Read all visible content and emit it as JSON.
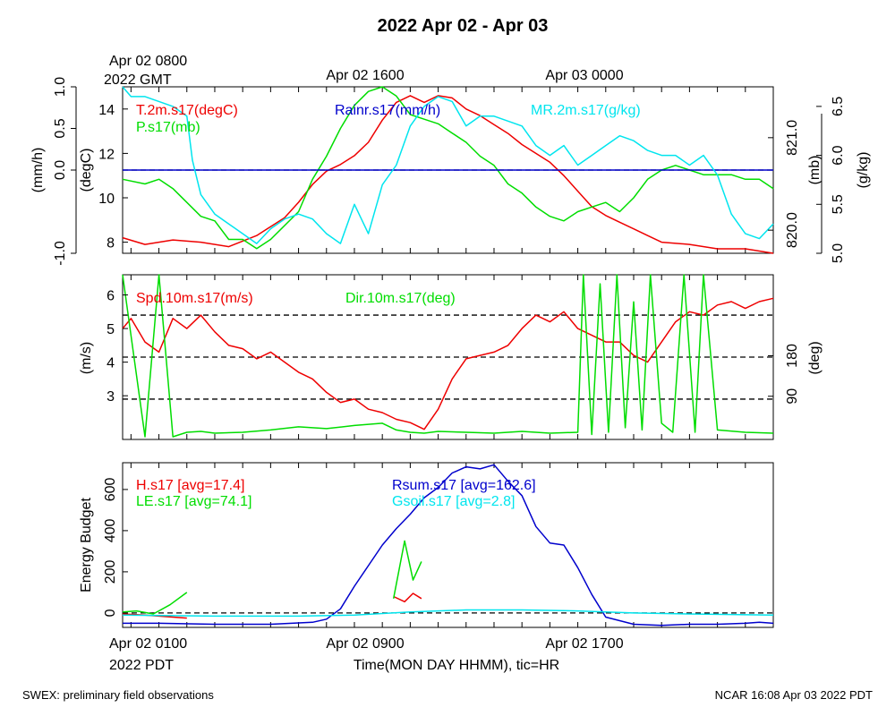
{
  "title": "2022 Apr 02 - Apr 03",
  "footer": {
    "left": "SWEX: preliminary field observations",
    "right": "NCAR 16:08 Apr 03 2022 PDT"
  },
  "top_time_labels": {
    "gmt_line1": "Apr 02 0800",
    "gmt_line2": "2022 GMT",
    "mid": "Apr 02 1600",
    "right": "Apr 03 0000"
  },
  "bottom_time_labels": {
    "left_line1": "Apr 02 0100",
    "left_line2": "2022 PDT",
    "mid": "Apr 02 0900",
    "right": "Apr 02 1700",
    "xlabel": "Time(MON DAY HHMM), tic=HR"
  },
  "colors": {
    "red": "#ee0000",
    "green": "#00dd00",
    "blue": "#0000cc",
    "cyan": "#00e5ee",
    "black": "#000000"
  },
  "chart_data": [
    {
      "type": "line",
      "panel": "met",
      "x_unit": "hours since Apr 02 0000 PDT",
      "xlim": [
        0.7,
        24.0
      ],
      "axes": {
        "rain": {
          "label": "(mm/h)",
          "ticks": [
            "-1.0",
            "0.0",
            "0.5",
            "1.0"
          ],
          "range": [
            -1.0,
            1.0
          ]
        },
        "temp": {
          "label": "(degC)",
          "ticks": [
            "8",
            "10",
            "12",
            "14"
          ],
          "range": [
            7.5,
            15.0
          ]
        },
        "pres": {
          "label": "(mb)",
          "ticks": [
            "820.0",
            "821.0"
          ],
          "range": [
            819.75,
            821.55
          ]
        },
        "mr": {
          "label": "(g/kg)",
          "ticks": [
            "5.0",
            "5.5",
            "6.0",
            "6.5"
          ],
          "range": [
            5.0,
            6.7
          ]
        }
      },
      "series": [
        {
          "name": "T.2m.s17(degC)",
          "axis": "temp",
          "color": "#ee0000",
          "x": [
            0.7,
            1.5,
            2.5,
            3.5,
            4.5,
            5.5,
            6.0,
            6.5,
            7.0,
            7.5,
            8.0,
            8.5,
            9.0,
            9.5,
            10.0,
            10.5,
            11.0,
            11.5,
            12.0,
            12.5,
            13.0,
            13.5,
            14.0,
            14.5,
            15.0,
            15.5,
            16.0,
            16.5,
            17.0,
            17.5,
            18.0,
            18.5,
            19.0,
            19.5,
            20.0,
            21.0,
            22.0,
            23.0,
            24.0
          ],
          "y": [
            8.2,
            7.9,
            8.1,
            8.0,
            7.8,
            8.3,
            8.7,
            9.1,
            9.8,
            10.6,
            11.2,
            11.5,
            11.9,
            12.5,
            13.5,
            14.3,
            14.6,
            14.3,
            14.6,
            14.5,
            14.0,
            13.7,
            13.3,
            12.9,
            12.4,
            12.0,
            11.6,
            11.0,
            10.3,
            9.6,
            9.2,
            8.9,
            8.6,
            8.3,
            8.0,
            7.9,
            7.7,
            7.7,
            7.5
          ]
        },
        {
          "name": "P.s17(mb)",
          "axis": "pres",
          "color": "#00dd00",
          "x": [
            0.7,
            1.5,
            2.0,
            2.5,
            3.0,
            3.5,
            4.0,
            4.5,
            5.0,
            5.5,
            6.0,
            6.5,
            7.0,
            7.5,
            8.0,
            8.5,
            9.0,
            9.5,
            10.0,
            10.5,
            11.0,
            11.5,
            12.0,
            12.5,
            13.0,
            13.5,
            14.0,
            14.5,
            15.0,
            15.5,
            16.0,
            16.5,
            17.0,
            17.5,
            18.0,
            18.5,
            19.0,
            19.5,
            20.0,
            20.5,
            21.0,
            21.5,
            22.0,
            22.5,
            23.0,
            23.5,
            24.0
          ],
          "y": [
            820.55,
            820.5,
            820.55,
            820.45,
            820.3,
            820.15,
            820.1,
            819.9,
            819.9,
            819.8,
            819.9,
            820.05,
            820.2,
            820.55,
            820.8,
            821.1,
            821.35,
            821.5,
            821.55,
            821.45,
            821.25,
            821.2,
            821.15,
            821.05,
            820.95,
            820.8,
            820.7,
            820.5,
            820.4,
            820.25,
            820.15,
            820.1,
            820.2,
            820.25,
            820.3,
            820.2,
            820.35,
            820.55,
            820.65,
            820.7,
            820.65,
            820.6,
            820.6,
            820.6,
            820.55,
            820.55,
            820.45
          ]
        },
        {
          "name": "Rainr.s17(mm/h)",
          "axis": "rain",
          "color": "#0000cc",
          "x": [
            0.7,
            24.0
          ],
          "y": [
            0.0,
            0.0
          ]
        },
        {
          "name": "MR.2m.s17(g/kg)",
          "axis": "mr",
          "color": "#00e5ee",
          "x": [
            0.7,
            1.0,
            1.5,
            2.0,
            2.5,
            3.0,
            3.2,
            3.5,
            4.0,
            4.5,
            5.0,
            5.5,
            6.0,
            6.5,
            7.0,
            7.5,
            8.0,
            8.5,
            9.0,
            9.5,
            10.0,
            10.5,
            11.0,
            11.5,
            12.0,
            12.5,
            13.0,
            13.5,
            14.0,
            14.5,
            15.0,
            15.5,
            16.0,
            16.5,
            17.0,
            17.5,
            18.0,
            18.5,
            19.0,
            19.5,
            20.0,
            20.5,
            21.0,
            21.5,
            22.0,
            22.5,
            23.0,
            23.5,
            24.0
          ],
          "y": [
            6.7,
            6.6,
            6.6,
            6.55,
            6.5,
            6.4,
            5.95,
            5.6,
            5.4,
            5.3,
            5.2,
            5.1,
            5.25,
            5.35,
            5.4,
            5.35,
            5.2,
            5.1,
            5.5,
            5.2,
            5.7,
            5.9,
            6.3,
            6.5,
            6.6,
            6.55,
            6.3,
            6.4,
            6.4,
            6.35,
            6.3,
            6.1,
            6.0,
            6.1,
            5.9,
            6.0,
            6.1,
            6.2,
            6.15,
            6.05,
            6.0,
            6.0,
            5.9,
            6.0,
            5.8,
            5.4,
            5.2,
            5.15,
            5.3
          ]
        }
      ],
      "hlines": [
        {
          "axis": "rain",
          "y": 0.0,
          "style": "dashed"
        }
      ]
    },
    {
      "type": "line",
      "panel": "wind",
      "x_unit": "hours since Apr 02 0000 PDT",
      "xlim": [
        0.7,
        24.0
      ],
      "axes": {
        "spd": {
          "label": "(m/s)",
          "ticks": [
            "3",
            "4",
            "5",
            "6"
          ],
          "range": [
            1.7,
            6.6
          ]
        },
        "dir": {
          "label": "(deg)",
          "ticks": [
            "90",
            "180"
          ],
          "range": [
            -6,
            360
          ]
        }
      },
      "series": [
        {
          "name": "Spd.10m.s17(m/s)",
          "axis": "spd",
          "color": "#ee0000",
          "x": [
            0.7,
            1.0,
            1.5,
            2.0,
            2.5,
            3.0,
            3.5,
            4.0,
            4.5,
            5.0,
            5.5,
            6.0,
            6.5,
            7.0,
            7.5,
            8.0,
            8.5,
            9.0,
            9.5,
            10.0,
            10.5,
            11.0,
            11.5,
            12.0,
            12.5,
            13.0,
            13.5,
            14.0,
            14.5,
            15.0,
            15.5,
            16.0,
            16.5,
            17.0,
            17.5,
            18.0,
            18.5,
            19.0,
            19.5,
            20.0,
            20.5,
            21.0,
            21.5,
            22.0,
            22.5,
            23.0,
            23.5,
            24.0
          ],
          "y": [
            5.0,
            5.3,
            4.6,
            4.3,
            5.3,
            5.0,
            5.4,
            4.9,
            4.5,
            4.4,
            4.1,
            4.3,
            4.0,
            3.7,
            3.5,
            3.1,
            2.8,
            2.9,
            2.6,
            2.5,
            2.3,
            2.2,
            2.0,
            2.6,
            3.5,
            4.1,
            4.2,
            4.3,
            4.5,
            5.0,
            5.4,
            5.2,
            5.5,
            5.0,
            4.8,
            4.6,
            4.6,
            4.2,
            4.0,
            4.6,
            5.2,
            5.5,
            5.4,
            5.7,
            5.8,
            5.6,
            5.8,
            5.9
          ]
        },
        {
          "name": "Dir.10m.s17(deg)",
          "axis": "dir",
          "color": "#00dd00",
          "x": [
            0.7,
            1.5,
            2.0,
            2.5,
            3.0,
            3.5,
            4.0,
            5.0,
            6.0,
            7.0,
            8.0,
            9.0,
            10.0,
            10.5,
            11.0,
            11.5,
            12.0,
            13.0,
            14.0,
            15.0,
            16.0,
            17.0,
            17.2,
            17.5,
            17.8,
            18.1,
            18.4,
            18.7,
            19.0,
            19.3,
            19.6,
            20.0,
            20.4,
            20.8,
            21.2,
            21.5,
            22.0,
            23.0,
            24.0
          ],
          "y": [
            360,
            0,
            360,
            0,
            10,
            12,
            8,
            10,
            15,
            22,
            18,
            25,
            30,
            15,
            10,
            8,
            12,
            10,
            8,
            12,
            8,
            10,
            360,
            5,
            340,
            10,
            360,
            20,
            300,
            15,
            360,
            30,
            10,
            360,
            10,
            360,
            15,
            10,
            8
          ]
        }
      ],
      "hlines": [
        {
          "axis": "spd",
          "y": 2.9,
          "style": "dashed"
        },
        {
          "axis": "spd",
          "y": 4.15,
          "style": "dashed"
        },
        {
          "axis": "spd",
          "y": 5.4,
          "style": "dashed"
        }
      ]
    },
    {
      "type": "line",
      "panel": "energy",
      "x_unit": "hours since Apr 02 0000 PDT",
      "xlim": [
        0.7,
        24.0
      ],
      "axes": {
        "energy": {
          "label": "Energy Budget",
          "ticks": [
            "0",
            "200",
            "400",
            "600"
          ],
          "range": [
            -70,
            730
          ]
        }
      },
      "series": [
        {
          "name": "H.s17",
          "avg_label": "[avg=17.4]",
          "axis": "energy",
          "color": "#ee0000",
          "segments": [
            {
              "x": [
                0.7,
                1.5,
                2.0,
                2.5,
                3.0
              ],
              "y": [
                -5,
                -10,
                -15,
                -20,
                -25
              ]
            },
            {
              "x": [
                10.4,
                10.8,
                11.1,
                11.4
              ],
              "y": [
                80,
                55,
                95,
                70
              ]
            }
          ]
        },
        {
          "name": "LE.s17",
          "avg_label": "[avg=74.1]",
          "axis": "energy",
          "color": "#00dd00",
          "segments": [
            {
              "x": [
                0.7,
                1.2,
                1.8,
                2.4,
                3.0
              ],
              "y": [
                5,
                10,
                -5,
                40,
                100
              ]
            },
            {
              "x": [
                10.4,
                10.8,
                11.1,
                11.4
              ],
              "y": [
                70,
                350,
                160,
                250
              ]
            }
          ]
        },
        {
          "name": "Rsum.s17",
          "avg_label": "[avg=162.6]",
          "axis": "energy",
          "color": "#0000cc",
          "segments": [
            {
              "x": [
                0.7,
                2.0,
                4.0,
                6.0,
                7.5,
                8.0,
                8.5,
                9.0,
                9.5,
                10.0,
                10.5,
                11.0,
                11.5,
                12.0,
                12.5,
                13.0,
                13.5,
                14.0,
                14.5,
                15.0,
                15.5,
                16.0,
                16.5,
                17.0,
                17.5,
                18.0,
                19.0,
                20.0,
                21.0,
                22.0,
                23.0,
                23.5,
                24.0
              ],
              "y": [
                -50,
                -50,
                -55,
                -55,
                -45,
                -30,
                20,
                130,
                230,
                330,
                410,
                480,
                560,
                610,
                680,
                710,
                700,
                720,
                640,
                570,
                420,
                340,
                330,
                220,
                90,
                -20,
                -55,
                -60,
                -55,
                -55,
                -50,
                -45,
                -50
              ]
            }
          ]
        },
        {
          "name": "Gsoil.s17",
          "avg_label": "[avg=2.8]",
          "axis": "energy",
          "color": "#00e5ee",
          "segments": [
            {
              "x": [
                0.7,
                4.0,
                7.0,
                9.0,
                11.0,
                13.0,
                15.0,
                17.0,
                19.0,
                21.0,
                24.0
              ],
              "y": [
                -10,
                -15,
                -15,
                -10,
                5,
                15,
                15,
                10,
                0,
                -5,
                -10
              ]
            }
          ]
        }
      ],
      "hlines": [
        {
          "axis": "energy",
          "y": 0,
          "style": "dashed"
        }
      ]
    }
  ]
}
